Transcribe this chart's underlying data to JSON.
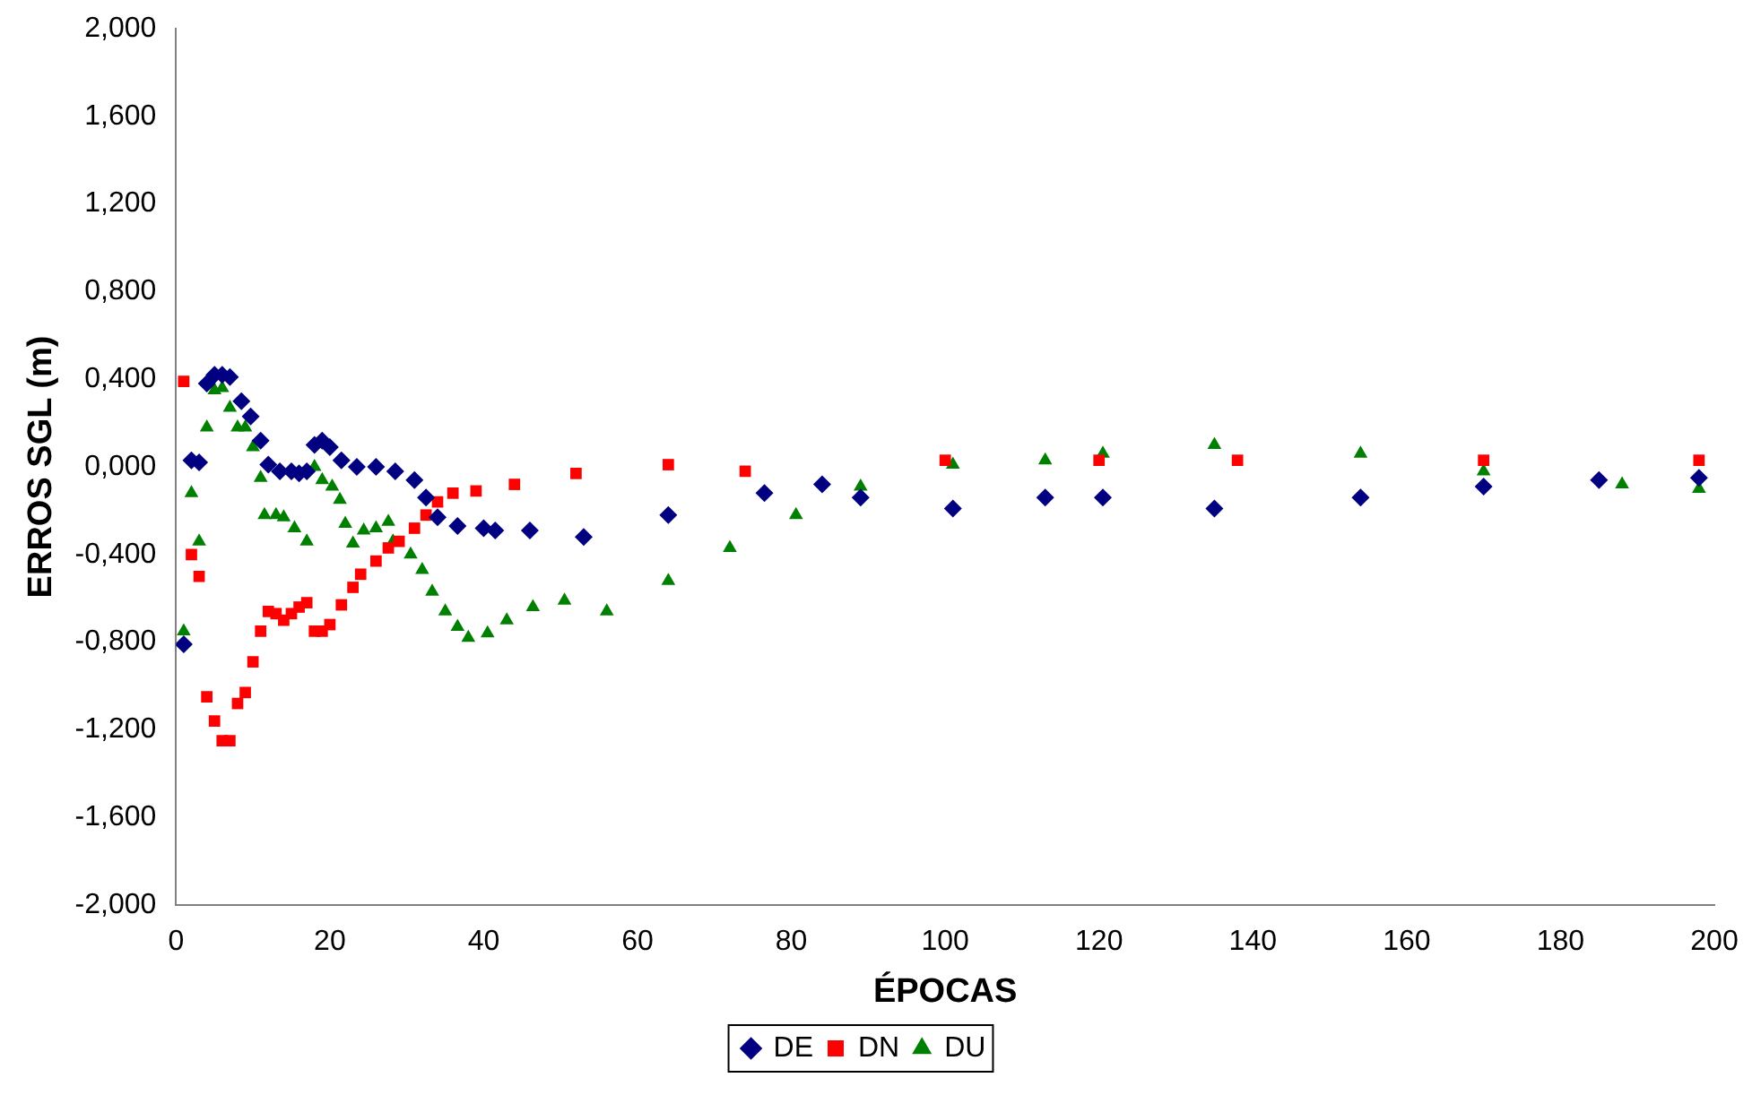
{
  "chart_data": {
    "type": "scatter",
    "xlabel": "ÉPOCAS",
    "ylabel": "ERROS SGL (m)",
    "xlim": [
      0,
      200
    ],
    "xticks": [
      0,
      20,
      40,
      60,
      80,
      100,
      120,
      140,
      160,
      180,
      200
    ],
    "ylim": [
      -2,
      2
    ],
    "yticks": [
      {
        "value": -2,
        "label": "-2,000"
      },
      {
        "value": -1.6,
        "label": "-1,600"
      },
      {
        "value": -1.2,
        "label": "-1,200"
      },
      {
        "value": -0.8,
        "label": "-0,800"
      },
      {
        "value": -0.4,
        "label": "-0,400"
      },
      {
        "value": 0,
        "label": "0,000"
      },
      {
        "value": 0.4,
        "label": "0,400"
      },
      {
        "value": 0.8,
        "label": "0,800"
      },
      {
        "value": 1.2,
        "label": "1,200"
      },
      {
        "value": 1.6,
        "label": "1,600"
      },
      {
        "value": 2,
        "label": "2,000"
      }
    ],
    "grid": false,
    "legend": "bottom",
    "series": [
      {
        "name": "DE",
        "color": "#000080",
        "marker": "diamond",
        "x": [
          1,
          2,
          3,
          4,
          5,
          6,
          7,
          8.5,
          9.7,
          11,
          12,
          13.5,
          15,
          16,
          17,
          18,
          19,
          20,
          21.5,
          23.5,
          26,
          28.5,
          31,
          32.5,
          34,
          36.6,
          40,
          41.5,
          46,
          53,
          64,
          76.5,
          84,
          89,
          101,
          113,
          120.5,
          135,
          154,
          170,
          185,
          198
        ],
        "values": [
          -0.81,
          0.03,
          0.02,
          0.38,
          0.42,
          0.42,
          0.41,
          0.3,
          0.23,
          0.12,
          0.01,
          -0.02,
          -0.02,
          -0.03,
          -0.02,
          0.1,
          0.12,
          0.09,
          0.03,
          0,
          0,
          -0.02,
          -0.06,
          -0.14,
          -0.23,
          -0.27,
          -0.28,
          -0.29,
          -0.29,
          -0.32,
          -0.22,
          -0.12,
          -0.08,
          -0.14,
          -0.19,
          -0.14,
          -0.14,
          -0.19,
          -0.14,
          -0.09,
          -0.06,
          -0.05
        ]
      },
      {
        "name": "DN",
        "color": "#ff0000",
        "marker": "square",
        "x": [
          1,
          2,
          3,
          4,
          5,
          6,
          7,
          8,
          9,
          10,
          11,
          12,
          13,
          14,
          15,
          16,
          17,
          18,
          19,
          20,
          21.5,
          23,
          24,
          26,
          27.6,
          29,
          31,
          32.5,
          34,
          36,
          39,
          44,
          52,
          64,
          74,
          100,
          120,
          138,
          170,
          198
        ],
        "values": [
          0.39,
          -0.4,
          -0.5,
          -1.05,
          -1.16,
          -1.25,
          -1.25,
          -1.08,
          -1.03,
          -0.89,
          -0.75,
          -0.66,
          -0.67,
          -0.7,
          -0.67,
          -0.64,
          -0.62,
          -0.75,
          -0.75,
          -0.72,
          -0.63,
          -0.55,
          -0.49,
          -0.43,
          -0.37,
          -0.34,
          -0.28,
          -0.22,
          -0.16,
          -0.12,
          -0.11,
          -0.08,
          -0.03,
          0.01,
          -0.02,
          0.03,
          0.03,
          0.03,
          0.03,
          0.03
        ]
      },
      {
        "name": "DU",
        "color": "#008000",
        "marker": "triangle",
        "x": [
          1,
          2,
          3,
          4,
          5,
          6,
          7,
          8,
          9,
          10,
          11,
          11.5,
          13,
          14,
          15.4,
          17,
          18,
          19,
          20.3,
          21.3,
          22,
          23,
          24.4,
          26,
          27.6,
          28.2,
          30.5,
          32,
          33.3,
          35,
          36.6,
          38,
          40.5,
          43,
          46.4,
          50.5,
          56,
          64,
          72,
          80.6,
          89,
          101,
          113,
          120.5,
          135,
          154,
          170,
          188,
          198
        ],
        "values": [
          -0.75,
          -0.12,
          -0.34,
          0.18,
          0.35,
          0.36,
          0.27,
          0.18,
          0.18,
          0.09,
          -0.05,
          -0.22,
          -0.22,
          -0.23,
          -0.28,
          -0.34,
          0,
          -0.06,
          -0.09,
          -0.15,
          -0.26,
          -0.35,
          -0.29,
          -0.28,
          -0.25,
          -0.34,
          -0.4,
          -0.47,
          -0.57,
          -0.66,
          -0.73,
          -0.78,
          -0.76,
          -0.7,
          -0.64,
          -0.61,
          -0.66,
          -0.52,
          -0.37,
          -0.22,
          -0.09,
          0.01,
          0.03,
          0.06,
          0.1,
          0.06,
          -0.02,
          -0.08,
          -0.1
        ]
      }
    ]
  }
}
